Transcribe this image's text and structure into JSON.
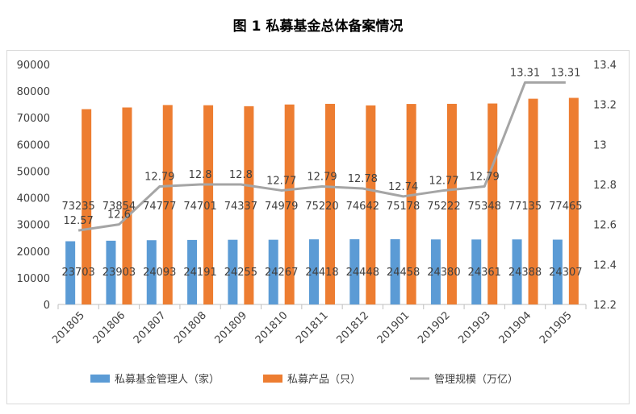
{
  "title": "图 1  私募基金总体备案情况",
  "chart_data": {
    "type": "bar",
    "categories": [
      "201805",
      "201806",
      "201807",
      "201808",
      "201809",
      "201810",
      "201811",
      "201812",
      "201901",
      "201902",
      "201903",
      "201904",
      "201905"
    ],
    "series": [
      {
        "name": "私募基金管理人（家）",
        "type": "bar",
        "axis": "left",
        "color": "#5b9bd5",
        "values": [
          23703,
          23903,
          24093,
          24191,
          24255,
          24267,
          24418,
          24448,
          24458,
          24380,
          24361,
          24388,
          24307
        ],
        "labels": [
          "23703",
          "23903",
          "24093",
          "24191",
          "24255",
          "24267",
          "24418",
          "24448",
          "24458",
          "24380",
          "24361",
          "24388",
          "24307"
        ]
      },
      {
        "name": "私募产品（只）",
        "type": "bar",
        "axis": "left",
        "color": "#ed7d31",
        "values": [
          73235,
          73854,
          74777,
          74701,
          74337,
          74979,
          75220,
          74642,
          75178,
          75222,
          75348,
          77135,
          77465
        ],
        "labels": [
          "73235",
          "73854",
          "74777",
          "74701",
          "74337",
          "74979",
          "75220",
          "74642",
          "75178",
          "75222",
          "75348",
          "77135",
          "77465"
        ]
      },
      {
        "name": "管理规模（万亿）",
        "type": "line",
        "axis": "right",
        "color": "#a5a5a5",
        "values": [
          12.57,
          12.6,
          12.79,
          12.8,
          12.8,
          12.77,
          12.79,
          12.78,
          12.74,
          12.77,
          12.79,
          13.31,
          13.31
        ],
        "labels": [
          "12.57",
          "12.6",
          "12.79",
          "12.8",
          "12.8",
          "12.77",
          "12.79",
          "12.78",
          "12.74",
          "12.77",
          "12.79",
          "13.31",
          "13.31"
        ]
      }
    ],
    "y_left": {
      "min": 0,
      "max": 90000,
      "ticks": [
        "0",
        "10000",
        "20000",
        "30000",
        "40000",
        "50000",
        "60000",
        "70000",
        "80000",
        "90000"
      ]
    },
    "y_right": {
      "min": 12.2,
      "max": 13.4,
      "ticks": [
        "12.2",
        "12.4",
        "12.6",
        "12.8",
        "13",
        "13.2",
        "13.4"
      ]
    },
    "grid": false,
    "legend_position": "bottom"
  }
}
